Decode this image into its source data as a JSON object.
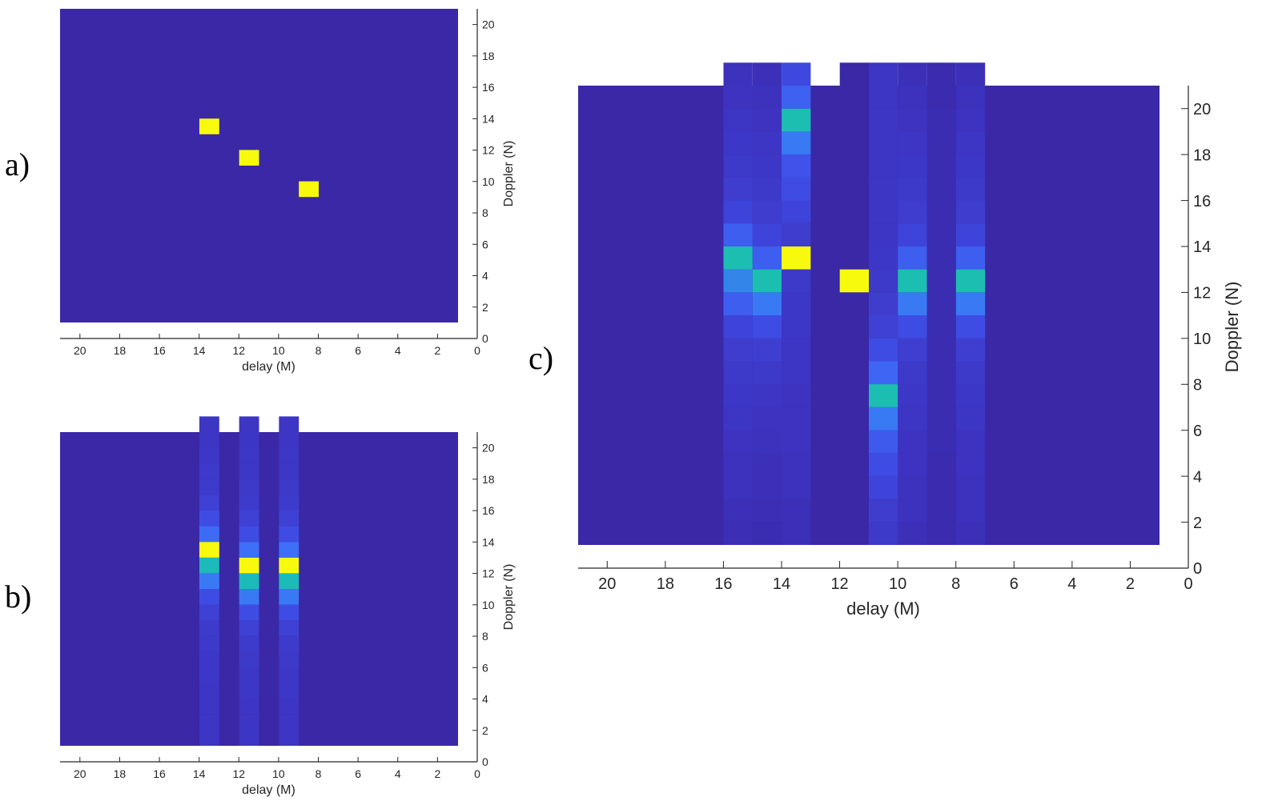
{
  "panels": [
    {
      "label": "a)"
    },
    {
      "label": "b)"
    },
    {
      "label": "c)"
    }
  ],
  "colors": {
    "background": "#3A28A6",
    "colormap": [
      "#3A28A6",
      "#3D35C4",
      "#3F50E8",
      "#3D72FA",
      "#1BB4C3",
      "#1DC0AE",
      "#F5EE1A",
      "#F8FA0D"
    ]
  },
  "chart_data": [
    {
      "type": "heatmap",
      "title": "",
      "xlabel": "delay (M)",
      "ylabel": "Doppler (N)",
      "xlim": [
        21,
        0
      ],
      "ylim": [
        0,
        21
      ],
      "xticks": [
        20,
        18,
        16,
        14,
        12,
        10,
        8,
        6,
        4,
        2,
        0
      ],
      "yticks": [
        0,
        2,
        4,
        6,
        8,
        10,
        12,
        14,
        16,
        18,
        20
      ],
      "x_reversed": true,
      "y_axis_side": "right",
      "grid": false,
      "background_value": 0,
      "cells": [
        {
          "x": 13.5,
          "y": 13.5,
          "value": 1.0
        },
        {
          "x": 11.5,
          "y": 11.5,
          "value": 1.0
        },
        {
          "x": 8.5,
          "y": 9.5,
          "value": 1.0
        }
      ]
    },
    {
      "type": "heatmap",
      "title": "",
      "xlabel": "delay (M)",
      "ylabel": "Doppler (N)",
      "xlim": [
        21,
        0
      ],
      "ylim": [
        0,
        21
      ],
      "xticks": [
        20,
        18,
        16,
        14,
        12,
        10,
        8,
        6,
        4,
        2,
        0
      ],
      "yticks": [
        0,
        2,
        4,
        6,
        8,
        10,
        12,
        14,
        16,
        18,
        20
      ],
      "x_reversed": true,
      "y_axis_side": "right",
      "grid": false,
      "background_value": 0,
      "columns": [
        {
          "x": 13.5,
          "peak_y": 13.5,
          "values": [
            0.08,
            0.08,
            0.08,
            0.08,
            0.09,
            0.09,
            0.1,
            0.11,
            0.14,
            0.2,
            0.45,
            0.75,
            1.0,
            0.38,
            0.2,
            0.14,
            0.11,
            0.1,
            0.09,
            0.08,
            0.08
          ]
        },
        {
          "x": 11.5,
          "peak_y": 11.5,
          "values": [
            0.08,
            0.08,
            0.08,
            0.09,
            0.09,
            0.1,
            0.11,
            0.14,
            0.2,
            0.45,
            0.75,
            1.0,
            0.4,
            0.2,
            0.14,
            0.11,
            0.1,
            0.09,
            0.09,
            0.08,
            0.08
          ]
        },
        {
          "x": 9.5,
          "peak_y": 11.5,
          "values": [
            0.08,
            0.08,
            0.08,
            0.09,
            0.09,
            0.1,
            0.11,
            0.14,
            0.2,
            0.45,
            0.75,
            1.0,
            0.4,
            0.2,
            0.14,
            0.11,
            0.1,
            0.09,
            0.09,
            0.08,
            0.08
          ]
        }
      ]
    },
    {
      "type": "heatmap",
      "title": "",
      "xlabel": "delay (M)",
      "ylabel": "Doppler (N)",
      "xlim": [
        21,
        0
      ],
      "ylim": [
        0,
        21
      ],
      "xticks": [
        20,
        18,
        16,
        14,
        12,
        10,
        8,
        6,
        4,
        2,
        0
      ],
      "yticks": [
        0,
        2,
        4,
        6,
        8,
        10,
        12,
        14,
        16,
        18,
        20
      ],
      "x_reversed": true,
      "y_axis_side": "right",
      "grid": false,
      "background_value": 0,
      "columns": [
        {
          "x": 15.5,
          "values": [
            0.04,
            0.05,
            0.06,
            0.06,
            0.07,
            0.08,
            0.09,
            0.1,
            0.12,
            0.16,
            0.3,
            0.5,
            0.78,
            0.3,
            0.16,
            0.12,
            0.1,
            0.09,
            0.08,
            0.07,
            0.06
          ]
        },
        {
          "x": 14.5,
          "values": [
            0.03,
            0.04,
            0.05,
            0.05,
            0.06,
            0.07,
            0.08,
            0.1,
            0.13,
            0.2,
            0.45,
            0.78,
            0.3,
            0.16,
            0.12,
            0.1,
            0.09,
            0.08,
            0.07,
            0.06,
            0.05
          ]
        },
        {
          "x": 13.5,
          "values": [
            0.05,
            0.05,
            0.06,
            0.06,
            0.07,
            0.07,
            0.07,
            0.08,
            0.08,
            0.09,
            0.09,
            0.1,
            1.0,
            0.12,
            0.16,
            0.2,
            0.24,
            0.45,
            0.78,
            0.32,
            0.18
          ]
        },
        {
          "x": 11.5,
          "values": [
            0,
            0,
            0,
            0,
            0,
            0,
            0,
            0,
            0,
            0,
            0,
            1.0,
            0,
            0,
            0,
            0,
            0,
            0,
            0,
            0,
            0
          ]
        },
        {
          "x": 10.5,
          "values": [
            0.1,
            0.12,
            0.16,
            0.2,
            0.28,
            0.45,
            0.78,
            0.35,
            0.2,
            0.14,
            0.12,
            0.1,
            0.09,
            0.08,
            0.08,
            0.08,
            0.08,
            0.08,
            0.08,
            0.08,
            0.08
          ]
        },
        {
          "x": 9.5,
          "values": [
            0.05,
            0.06,
            0.06,
            0.07,
            0.07,
            0.08,
            0.09,
            0.1,
            0.13,
            0.2,
            0.45,
            0.78,
            0.3,
            0.16,
            0.12,
            0.1,
            0.09,
            0.08,
            0.07,
            0.06,
            0.05
          ]
        },
        {
          "x": 8.5,
          "values": [
            0.02,
            0.02,
            0.02,
            0.02,
            0.03,
            0.03,
            0.03,
            0.03,
            0.03,
            0.03,
            0.03,
            0.03,
            0.03,
            0.03,
            0.03,
            0.03,
            0.03,
            0.03,
            0.03,
            0.02,
            0.02
          ]
        },
        {
          "x": 7.5,
          "values": [
            0.05,
            0.06,
            0.06,
            0.07,
            0.07,
            0.08,
            0.09,
            0.1,
            0.13,
            0.2,
            0.45,
            0.78,
            0.3,
            0.16,
            0.12,
            0.1,
            0.09,
            0.08,
            0.07,
            0.06,
            0.05
          ]
        }
      ]
    }
  ]
}
